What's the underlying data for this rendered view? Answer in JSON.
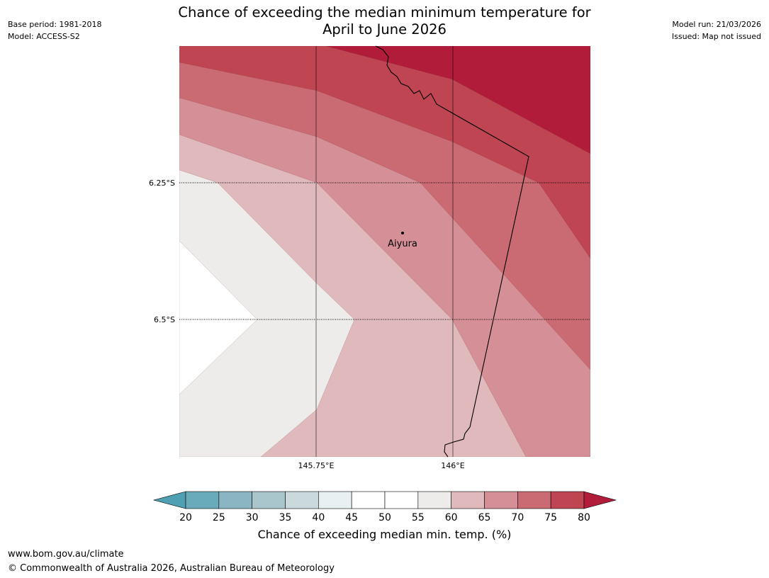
{
  "header": {
    "title_line1": "Chance of exceeding the median minimum temperature for",
    "title_line2": "April to June 2026",
    "base_period": "Base period: 1981-2018",
    "model": "Model: ACCESS-S2",
    "model_run": "Model run: 21/03/2026",
    "issued": "Issued: Map not issued"
  },
  "map": {
    "lat_labels": [
      "6.25°S",
      "6.5°S"
    ],
    "lon_labels": [
      "145.75°E",
      "146°E"
    ],
    "place_label": "Aiyura",
    "bands": [
      {
        "range": "45-50",
        "color": "#ffffff"
      },
      {
        "range": "55-60",
        "color": "#edecea"
      },
      {
        "range": "60-65",
        "color": "#e0b9bd"
      },
      {
        "range": "65-70",
        "color": "#d58f96"
      },
      {
        "range": "70-75",
        "color": "#ca6a73"
      },
      {
        "range": "75-80",
        "color": "#bf4553"
      },
      {
        "range": ">80",
        "color": "#b01c3a"
      }
    ]
  },
  "colorbar": {
    "ticks": [
      "20",
      "25",
      "30",
      "35",
      "40",
      "45",
      "50",
      "55",
      "60",
      "65",
      "70",
      "75",
      "80"
    ],
    "colors": [
      "#6aabbb",
      "#8ab6c3",
      "#a9c6cc",
      "#c9d9dc",
      "#e9f0f2",
      "#ffffff",
      "#ffffff",
      "#edecea",
      "#e0b9bd",
      "#d58f96",
      "#ca6a73",
      "#bf4553"
    ],
    "low_color": "#4fa0b2",
    "high_color": "#b01c3a",
    "label": "Chance of exceeding median min. temp. (%)"
  },
  "footer": {
    "url": "www.bom.gov.au/climate",
    "copyright": "© Commonwealth of Australia 2026, Australian Bureau of Meteorology"
  }
}
